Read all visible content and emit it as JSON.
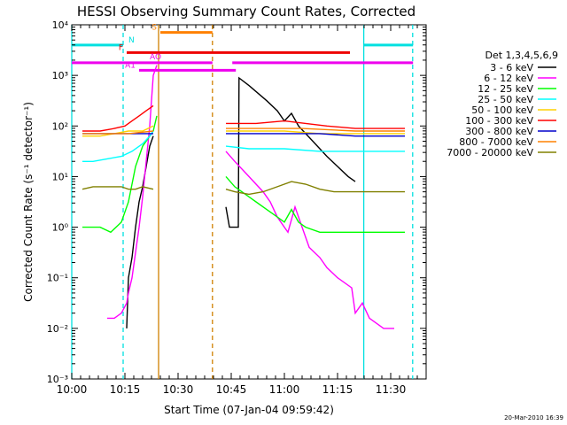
{
  "chart_data": {
    "type": "line",
    "title": "HESSI Observing Summary Count Rates, Corrected",
    "xlabel": "Start Time (07-Jan-04 09:59:42)",
    "ylabel": "Corrected Count Rate (s⁻¹ detector⁻¹)",
    "ylog": true,
    "ylim_exp": [
      -3,
      4
    ],
    "y_ticks": [
      "10⁻³",
      "10⁻²",
      "10⁻¹",
      "10⁰",
      "10¹",
      "10²",
      "10³",
      "10⁴"
    ],
    "xlim_min": [
      0,
      100
    ],
    "x_ticks": [
      {
        "t": 0,
        "label": "10:00"
      },
      {
        "t": 15,
        "label": "10:15"
      },
      {
        "t": 30,
        "label": "10:30"
      },
      {
        "t": 45,
        "label": "10:45"
      },
      {
        "t": 60,
        "label": "11:00"
      },
      {
        "t": 75,
        "label": "11:15"
      },
      {
        "t": 90,
        "label": "11:30"
      }
    ],
    "legend_title": "Det 1,3,4,5,6,9",
    "legend_position": "right",
    "series": [
      {
        "name": "3 - 6 keV",
        "color": "#000000",
        "points": [
          [
            15.5,
            -2.0
          ],
          [
            16,
            -1.0
          ],
          [
            17,
            -0.6
          ],
          [
            18,
            0.0
          ],
          [
            19,
            0.5
          ],
          [
            20,
            0.8
          ],
          [
            21,
            1.2
          ],
          [
            22,
            1.6
          ],
          [
            23,
            1.8
          ]
        ],
        "points2": [
          [
            43.5,
            0.4
          ],
          [
            44.5,
            0.0
          ],
          [
            45,
            0.0
          ],
          [
            47,
            0.0
          ],
          [
            47.2,
            2.95
          ],
          [
            50,
            2.8
          ],
          [
            55,
            2.5
          ],
          [
            58,
            2.3
          ],
          [
            60,
            2.1
          ],
          [
            62,
            2.25
          ],
          [
            64,
            2.0
          ],
          [
            68,
            1.7
          ],
          [
            72,
            1.4
          ],
          [
            75,
            1.2
          ],
          [
            78,
            1.0
          ],
          [
            80,
            0.9
          ]
        ]
      },
      {
        "name": "6 - 12 keV",
        "color": "#ff00ff",
        "points": [
          [
            10,
            -1.8
          ],
          [
            12,
            -1.8
          ],
          [
            14,
            -1.7
          ],
          [
            15.5,
            -1.5
          ],
          [
            16,
            -1.3
          ],
          [
            17,
            -1.0
          ],
          [
            18,
            -0.5
          ],
          [
            19,
            0.0
          ],
          [
            20,
            0.6
          ],
          [
            21,
            1.3
          ],
          [
            22,
            2.0
          ],
          [
            23,
            3.0
          ],
          [
            24,
            3.2
          ]
        ],
        "points2": [
          [
            43.5,
            1.5
          ],
          [
            46,
            1.3
          ],
          [
            50,
            1.0
          ],
          [
            54,
            0.7
          ],
          [
            56,
            0.5
          ],
          [
            58,
            0.2
          ],
          [
            60,
            0.0
          ],
          [
            61,
            -0.1
          ],
          [
            63,
            0.4
          ],
          [
            65,
            0.0
          ],
          [
            67,
            -0.4
          ],
          [
            70,
            -0.6
          ],
          [
            72,
            -0.8
          ],
          [
            75,
            -1.0
          ],
          [
            79,
            -1.2
          ],
          [
            80,
            -1.7
          ],
          [
            82,
            -1.5
          ],
          [
            84,
            -1.8
          ],
          [
            88,
            -2.0
          ],
          [
            91,
            -2.0
          ]
        ]
      },
      {
        "name": "12 - 25 keV",
        "color": "#00ff00",
        "points": [
          [
            3,
            0.0
          ],
          [
            6,
            0.0
          ],
          [
            8,
            0.0
          ],
          [
            11,
            -0.1
          ],
          [
            14,
            0.1
          ],
          [
            16,
            0.5
          ],
          [
            18,
            1.2
          ],
          [
            20,
            1.6
          ],
          [
            22,
            1.8
          ],
          [
            23,
            1.9
          ],
          [
            24,
            2.2
          ]
        ],
        "points2": [
          [
            43.5,
            1.0
          ],
          [
            46,
            0.8
          ],
          [
            48,
            0.7
          ],
          [
            50,
            0.6
          ],
          [
            52,
            0.5
          ],
          [
            55,
            0.35
          ],
          [
            58,
            0.2
          ],
          [
            60,
            0.1
          ],
          [
            62,
            0.35
          ],
          [
            64,
            0.1
          ],
          [
            66,
            0.0
          ],
          [
            70,
            -0.1
          ],
          [
            75,
            -0.1
          ],
          [
            80,
            -0.1
          ],
          [
            85,
            -0.1
          ],
          [
            88,
            -0.1
          ],
          [
            94,
            -0.1
          ]
        ]
      },
      {
        "name": "25 - 50 keV",
        "color": "#00ffff",
        "points": [
          [
            3,
            1.3
          ],
          [
            6,
            1.3
          ],
          [
            10,
            1.35
          ],
          [
            14,
            1.4
          ],
          [
            17,
            1.5
          ],
          [
            20,
            1.65
          ],
          [
            22,
            1.8
          ],
          [
            23,
            1.9
          ]
        ],
        "points2": [
          [
            43.5,
            1.6
          ],
          [
            50,
            1.55
          ],
          [
            60,
            1.55
          ],
          [
            70,
            1.5
          ],
          [
            80,
            1.5
          ],
          [
            94,
            1.5
          ]
        ]
      },
      {
        "name": "50 - 100 keV",
        "color": "#ffd000",
        "points": [
          [
            3,
            1.8
          ],
          [
            8,
            1.8
          ],
          [
            12,
            1.85
          ],
          [
            16,
            1.9
          ],
          [
            20,
            1.9
          ],
          [
            23,
            2.0
          ]
        ],
        "points2": [
          [
            43.5,
            1.9
          ],
          [
            52,
            1.9
          ],
          [
            60,
            1.9
          ],
          [
            70,
            1.85
          ],
          [
            80,
            1.85
          ],
          [
            94,
            1.85
          ]
        ]
      },
      {
        "name": "100 - 300 keV",
        "color": "#ff0000",
        "points": [
          [
            3,
            1.9
          ],
          [
            8,
            1.9
          ],
          [
            12,
            1.95
          ],
          [
            15,
            2.0
          ],
          [
            17,
            2.1
          ],
          [
            19,
            2.2
          ],
          [
            21,
            2.3
          ],
          [
            23,
            2.4
          ]
        ],
        "points2": [
          [
            43.5,
            2.05
          ],
          [
            52,
            2.05
          ],
          [
            60,
            2.1
          ],
          [
            66,
            2.05
          ],
          [
            72,
            2.0
          ],
          [
            80,
            1.95
          ],
          [
            94,
            1.95
          ]
        ]
      },
      {
        "name": "300 - 800 keV",
        "color": "#0000cc",
        "points": [
          [
            3,
            1.85
          ],
          [
            8,
            1.85
          ],
          [
            12,
            1.85
          ],
          [
            16,
            1.85
          ],
          [
            20,
            1.85
          ],
          [
            23,
            1.85
          ]
        ],
        "points2": [
          [
            43.5,
            1.85
          ],
          [
            52,
            1.85
          ],
          [
            60,
            1.85
          ],
          [
            70,
            1.85
          ],
          [
            80,
            1.8
          ],
          [
            94,
            1.8
          ]
        ]
      },
      {
        "name": "800 - 7000 keV",
        "color": "#ff8000",
        "points": [
          [
            3,
            1.85
          ],
          [
            10,
            1.85
          ],
          [
            16,
            1.85
          ],
          [
            23,
            1.9
          ]
        ],
        "points2": [
          [
            43.5,
            1.95
          ],
          [
            55,
            1.95
          ],
          [
            65,
            1.95
          ],
          [
            80,
            1.9
          ],
          [
            94,
            1.9
          ]
        ]
      },
      {
        "name": "7000 - 20000 keV",
        "color": "#808000",
        "points": [
          [
            3,
            0.75
          ],
          [
            6,
            0.8
          ],
          [
            9,
            0.8
          ],
          [
            12,
            0.8
          ],
          [
            14,
            0.8
          ],
          [
            16,
            0.75
          ],
          [
            18,
            0.75
          ],
          [
            20,
            0.8
          ],
          [
            23,
            0.75
          ]
        ],
        "points2": [
          [
            43.5,
            0.75
          ],
          [
            46,
            0.7
          ],
          [
            50,
            0.65
          ],
          [
            54,
            0.7
          ],
          [
            58,
            0.8
          ],
          [
            62,
            0.9
          ],
          [
            66,
            0.85
          ],
          [
            70,
            0.75
          ],
          [
            74,
            0.7
          ],
          [
            80,
            0.7
          ],
          [
            86,
            0.7
          ],
          [
            94,
            0.7
          ]
        ]
      }
    ],
    "vlines": [
      {
        "t": 0,
        "color": "#00e0e0",
        "style": "solid"
      },
      {
        "t": 14.5,
        "color": "#00e0e0",
        "style": "dashed"
      },
      {
        "t": 24.5,
        "color": "#d08000",
        "style": "solid"
      },
      {
        "t": 39.7,
        "color": "#d08000",
        "style": "dashed"
      },
      {
        "t": 82.4,
        "color": "#00e0e0",
        "style": "solid"
      },
      {
        "t": 96.2,
        "color": "#00e0e0",
        "style": "dashed"
      }
    ],
    "flag_bars": [
      {
        "label": "N",
        "color": "#00e0e0",
        "y": 3.6,
        "segments": [
          [
            0,
            14.5
          ],
          [
            82.4,
            96.3
          ]
        ]
      },
      {
        "label": "S",
        "color": "#ff8000",
        "y": 3.85,
        "segments": [
          [
            25,
            39.7
          ]
        ]
      },
      {
        "label": "F",
        "color": "#ee0000",
        "y": 3.45,
        "segments": [
          [
            15.5,
            78.5
          ]
        ]
      },
      {
        "label": "AO",
        "color": "#ee00ee",
        "y": 3.25,
        "segments": [
          [
            0,
            39.7
          ],
          [
            45.3,
            96.3
          ]
        ]
      },
      {
        "label": "A1",
        "color": "#ee00ee",
        "y": 3.1,
        "segments": [
          [
            19,
            46.3
          ]
        ]
      }
    ]
  },
  "footer": {
    "timestamp": "20-Mar-2010 16:39"
  }
}
